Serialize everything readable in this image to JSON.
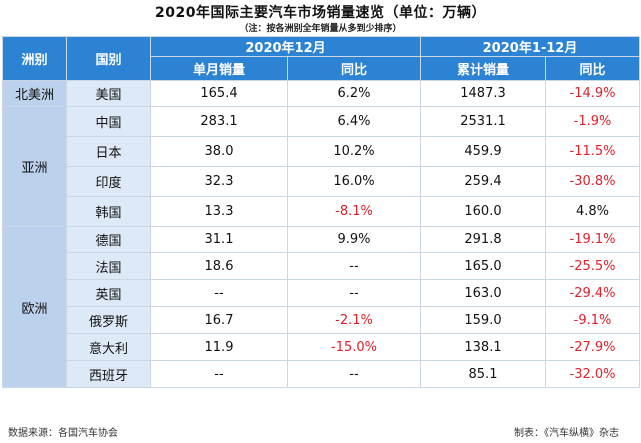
{
  "title": "2020年国际主要汽车市场销量速览（单位：万辆）",
  "note": "（注：按各洲别全年销量从多到少排序）",
  "headers": {
    "region": "洲别",
    "country": "国别",
    "period_month": "2020年12月",
    "period_year": "2020年1-12月",
    "month_sales": "单月销量",
    "month_yoy": "同比",
    "ytd_sales": "累计销量",
    "ytd_yoy": "同比"
  },
  "regions": [
    "北美洲",
    "亚洲",
    "欧洲"
  ],
  "rows": [
    {
      "country": "美国",
      "m_sales": "165.4",
      "m_yoy": "6.2%",
      "y_sales": "1487.3",
      "y_yoy": "-14.9%"
    },
    {
      "country": "中国",
      "m_sales": "283.1",
      "m_yoy": "6.4%",
      "y_sales": "2531.1",
      "y_yoy": "-1.9%"
    },
    {
      "country": "日本",
      "m_sales": "38.0",
      "m_yoy": "10.2%",
      "y_sales": "459.9",
      "y_yoy": "-11.5%"
    },
    {
      "country": "印度",
      "m_sales": "32.3",
      "m_yoy": "16.0%",
      "y_sales": "259.4",
      "y_yoy": "-30.8%"
    },
    {
      "country": "韩国",
      "m_sales": "13.3",
      "m_yoy": "-8.1%",
      "y_sales": "160.0",
      "y_yoy": "4.8%"
    },
    {
      "country": "德国",
      "m_sales": "31.1",
      "m_yoy": "9.9%",
      "y_sales": "291.8",
      "y_yoy": "-19.1%"
    },
    {
      "country": "法国",
      "m_sales": "18.6",
      "m_yoy": "--",
      "y_sales": "165.0",
      "y_yoy": "-25.5%"
    },
    {
      "country": "英国",
      "m_sales": "--",
      "m_yoy": "--",
      "y_sales": "163.0",
      "y_yoy": "-29.4%"
    },
    {
      "country": "俄罗斯",
      "m_sales": "16.7",
      "m_yoy": "-2.1%",
      "y_sales": "159.0",
      "y_yoy": "-9.1%"
    },
    {
      "country": "意大利",
      "m_sales": "11.9",
      "m_yoy": "-15.0%",
      "y_sales": "138.1",
      "y_yoy": "-27.9%"
    },
    {
      "country": "西班牙",
      "m_sales": "--",
      "m_yoy": "--",
      "y_sales": "85.1",
      "y_yoy": "-32.0%"
    }
  ],
  "negative_color": "#e0202a",
  "header_color": "#2c83d3",
  "footer": {
    "source": "数据来源：各国汽车协会",
    "maker": "制表：《汽车纵横》杂志"
  }
}
